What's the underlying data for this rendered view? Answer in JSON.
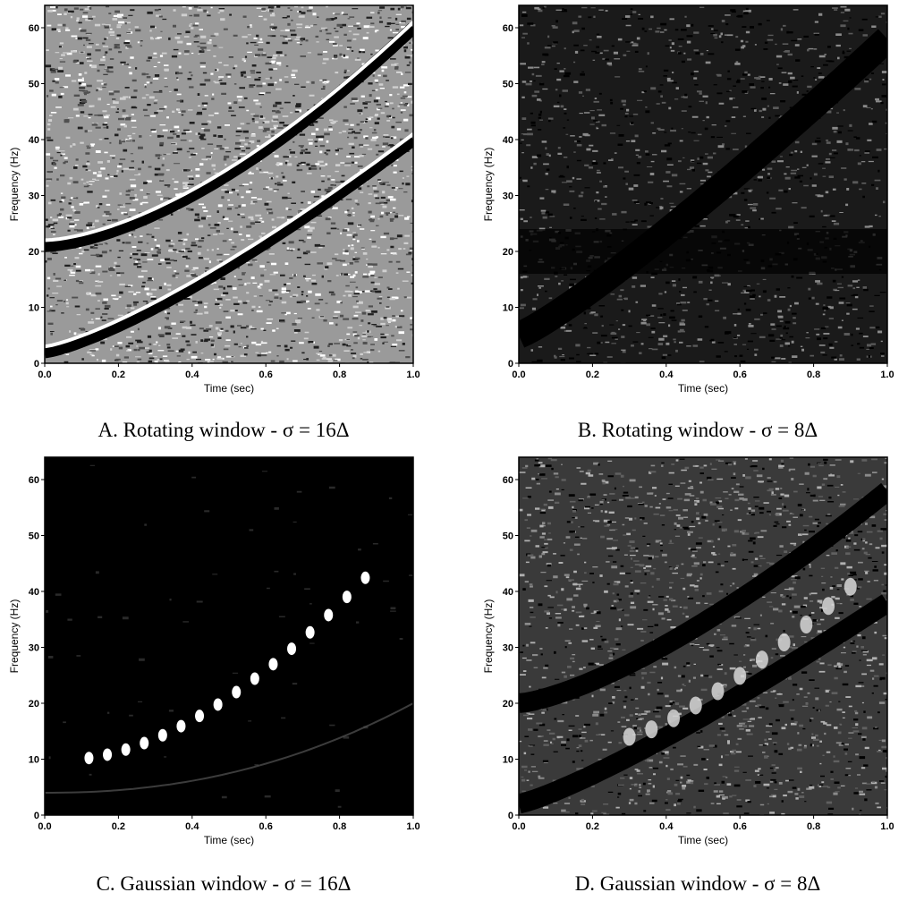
{
  "panels": [
    {
      "caption": "A. Rotating window - σ = 16Δ",
      "ylabel": "Frequency (Hz)",
      "xlabel": "Time (sec)",
      "xticks": [
        "0.0",
        "0.2",
        "0.4",
        "0.6",
        "0.8",
        "1.0"
      ],
      "yticks": [
        "0",
        "10",
        "20",
        "30",
        "40",
        "50",
        "60"
      ],
      "style": "light"
    },
    {
      "caption": "B. Rotating window - σ = 8Δ",
      "ylabel": "Frequency (Hz)",
      "xlabel": "Time (sec)",
      "xticks": [
        "0.0",
        "0.2",
        "0.4",
        "0.6",
        "0.8",
        "1.0"
      ],
      "yticks": [
        "0",
        "10",
        "20",
        "30",
        "40",
        "50",
        "60"
      ],
      "style": "dark"
    },
    {
      "caption": "C. Gaussian window - σ = 16Δ",
      "ylabel": "Frequency (Hz)",
      "xlabel": "Time (sec)",
      "xticks": [
        "0.0",
        "0.2",
        "0.4",
        "0.6",
        "0.8",
        "1.0"
      ],
      "yticks": [
        "0",
        "10",
        "20",
        "30",
        "40",
        "50",
        "60"
      ],
      "style": "black"
    },
    {
      "caption": "D. Gaussian window - σ = 8Δ",
      "ylabel": "Frequency (Hz)",
      "xlabel": "Time (sec)",
      "xticks": [
        "0.0",
        "0.2",
        "0.4",
        "0.6",
        "0.8",
        "1.0"
      ],
      "yticks": [
        "0",
        "10",
        "20",
        "30",
        "40",
        "50",
        "60"
      ],
      "style": "medium"
    }
  ]
}
